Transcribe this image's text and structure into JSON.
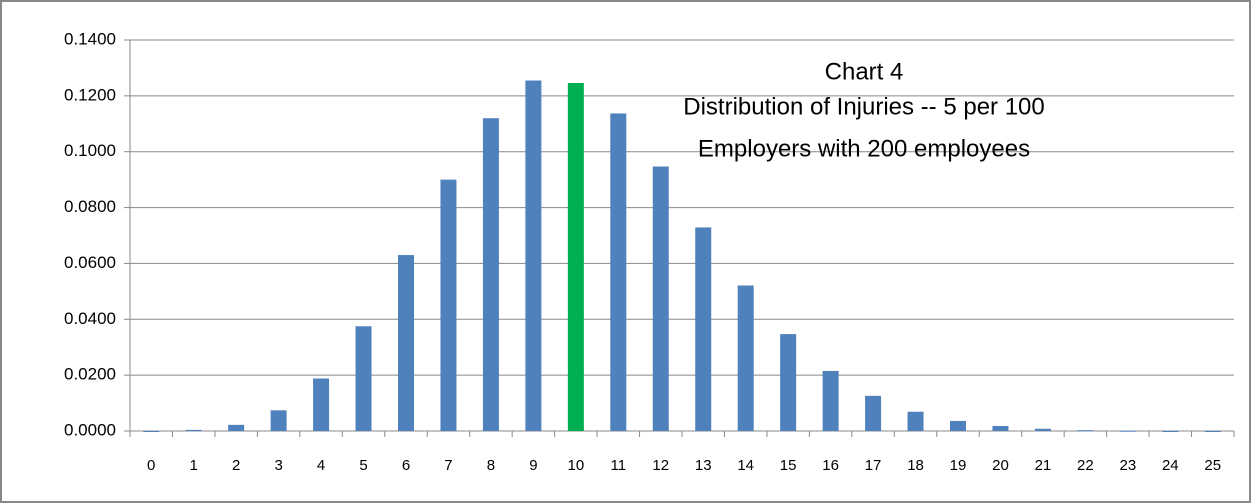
{
  "chart_data": {
    "type": "bar",
    "title": "Chart 4",
    "subtitle": [
      "Distribution of Injuries -- 5 per 100",
      "Employers with 200 employees"
    ],
    "categories": [
      "0",
      "1",
      "2",
      "3",
      "4",
      "5",
      "6",
      "7",
      "8",
      "9",
      "10",
      "11",
      "12",
      "13",
      "14",
      "15",
      "16",
      "17",
      "18",
      "19",
      "20",
      "21",
      "22",
      "23",
      "24",
      "25"
    ],
    "values": [
      0.0,
      0.0004,
      0.0022,
      0.0074,
      0.0188,
      0.0375,
      0.063,
      0.09,
      0.112,
      0.1255,
      0.1246,
      0.1137,
      0.0947,
      0.0729,
      0.0521,
      0.0347,
      0.0215,
      0.0126,
      0.0069,
      0.0036,
      0.0018,
      0.0008,
      0.0003,
      0.0001,
      0.0,
      0.0
    ],
    "colors": [
      "#4f81bd",
      "#4f81bd",
      "#4f81bd",
      "#4f81bd",
      "#4f81bd",
      "#4f81bd",
      "#4f81bd",
      "#4f81bd",
      "#4f81bd",
      "#4f81bd",
      "#00b050",
      "#4f81bd",
      "#4f81bd",
      "#4f81bd",
      "#4f81bd",
      "#4f81bd",
      "#4f81bd",
      "#4f81bd",
      "#4f81bd",
      "#4f81bd",
      "#4f81bd",
      "#4f81bd",
      "#4f81bd",
      "#4f81bd",
      "#4f81bd",
      "#4f81bd"
    ],
    "ylim": [
      0,
      0.14
    ],
    "yticks": [
      {
        "value": 0,
        "label": "0.0000"
      },
      {
        "value": 0.02,
        "label": "0.0200"
      },
      {
        "value": 0.04,
        "label": "0.0400"
      },
      {
        "value": 0.06,
        "label": "0.0600"
      },
      {
        "value": 0.08,
        "label": "0.0800"
      },
      {
        "value": 0.1,
        "label": "0.1000"
      },
      {
        "value": 0.12,
        "label": "0.1200"
      },
      {
        "value": 0.14,
        "label": "0.1400"
      }
    ],
    "grid": true
  }
}
